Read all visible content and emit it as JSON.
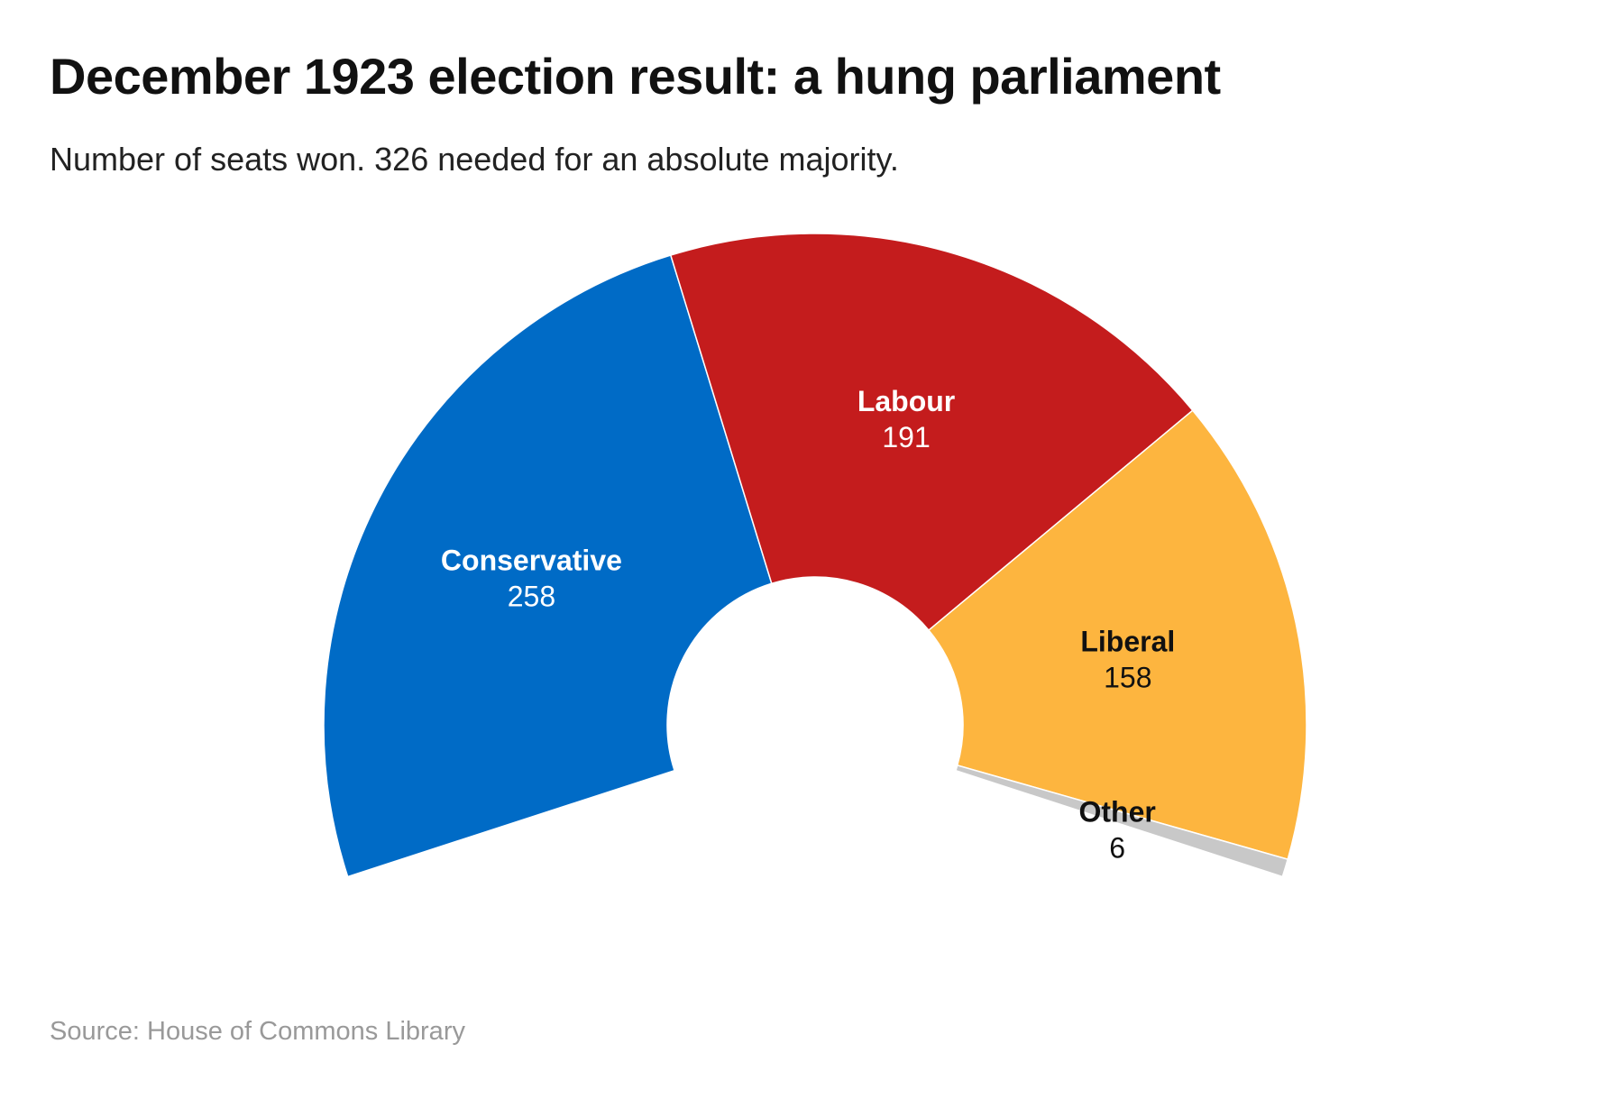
{
  "chart_data": {
    "type": "pie",
    "variant": "parliament-semicircle-donut",
    "title": "December 1923 election result: a hung parliament",
    "subtitle": "Number of seats won. 326 needed for an absolute majority.",
    "source": "Source: House of Commons Library",
    "series": [
      {
        "name": "Conservative",
        "value": 258,
        "label": "258",
        "color": "#006bc6",
        "label_color": "#ffffff"
      },
      {
        "name": "Labour",
        "value": 191,
        "label": "191",
        "color": "#c41c1d",
        "label_color": "#ffffff"
      },
      {
        "name": "Liberal",
        "value": 158,
        "label": "158",
        "color": "#fdb53f",
        "label_color": "#111111"
      },
      {
        "name": "Other",
        "value": 6,
        "label": "6",
        "color": "#c8c8c8",
        "label_color": "#111111"
      }
    ],
    "legend": "none"
  }
}
